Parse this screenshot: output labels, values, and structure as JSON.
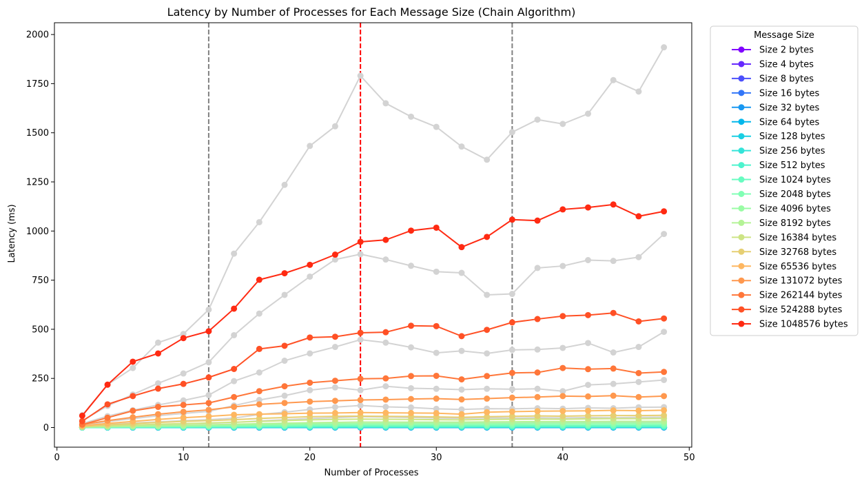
{
  "chart_data": {
    "type": "line",
    "title": "Latency by Number of Processes for Each Message Size (Chain Algorithm)",
    "xlabel": "Number of Processes",
    "ylabel": "Latency (ms)",
    "xlim": [
      -0.2,
      50.2
    ],
    "ylim": [
      -100,
      2060
    ],
    "xticks": [
      0,
      10,
      20,
      30,
      40,
      50
    ],
    "yticks": [
      0,
      250,
      500,
      750,
      1000,
      1250,
      1500,
      1750,
      2000
    ],
    "grid": false,
    "legend_title": "Message Size",
    "legend_position": "outside right, top",
    "vertical_lines": [
      {
        "x": 12,
        "color": "#808080",
        "style": "dashed"
      },
      {
        "x": 24,
        "color": "#ff0000",
        "style": "dashed"
      },
      {
        "x": 36,
        "color": "#808080",
        "style": "dashed"
      }
    ],
    "x": [
      2,
      4,
      6,
      8,
      10,
      12,
      14,
      16,
      18,
      20,
      22,
      24,
      26,
      28,
      30,
      32,
      34,
      36,
      38,
      40,
      42,
      44,
      46,
      48
    ],
    "gray_series_color": "#d3d3d3",
    "gray_series": [
      {
        "values": [
          63,
          218,
          303,
          432,
          476,
          600,
          885,
          1045,
          1235,
          1433,
          1533,
          1790,
          1650,
          1582,
          1530,
          1430,
          1363,
          1503,
          1567,
          1545,
          1597,
          1768,
          1710,
          1935
        ]
      },
      {
        "values": [
          35,
          110,
          168,
          225,
          275,
          332,
          470,
          580,
          675,
          768,
          855,
          882,
          855,
          823,
          793,
          787,
          675,
          680,
          812,
          822,
          852,
          848,
          867,
          985
        ]
      },
      {
        "values": [
          20,
          58,
          88,
          115,
          138,
          165,
          236,
          280,
          340,
          377,
          410,
          447,
          432,
          408,
          380,
          390,
          377,
          395,
          397,
          405,
          430,
          382,
          410,
          487
        ]
      },
      {
        "values": [
          12,
          30,
          45,
          60,
          72,
          82,
          112,
          140,
          162,
          190,
          204,
          190,
          210,
          200,
          197,
          193,
          197,
          195,
          197,
          185,
          217,
          222,
          232,
          242
        ]
      },
      {
        "values": [
          7,
          16,
          23,
          29,
          35,
          40,
          48,
          66,
          78,
          92,
          104,
          112,
          105,
          102,
          95,
          92,
          96,
          95,
          98,
          96,
          100,
          98,
          103,
          104
        ]
      },
      {
        "values": [
          4,
          9,
          13,
          16,
          19,
          22,
          26,
          34,
          40,
          46,
          50,
          55,
          53,
          51,
          48,
          47,
          49,
          48,
          50,
          49,
          51,
          50,
          52,
          53
        ]
      },
      {
        "values": [
          2,
          5,
          7,
          9,
          10,
          12,
          14,
          18,
          21,
          24,
          26,
          28,
          27,
          26,
          25,
          24,
          25,
          25,
          26,
          25,
          26,
          26,
          27,
          28
        ]
      }
    ],
    "series": [
      {
        "name": "Size 2 bytes",
        "color": "#8000ff",
        "values": [
          0.05,
          0.1,
          0.1,
          0.2,
          0.2,
          0.2,
          0.3,
          0.3,
          0.3,
          0.4,
          0.4,
          0.4,
          0.4,
          0.4,
          0.4,
          0.4,
          0.4,
          0.5,
          0.5,
          0.5,
          0.5,
          0.5,
          0.5,
          0.5
        ]
      },
      {
        "name": "Size 4 bytes",
        "color": "#6629fe",
        "values": [
          0.05,
          0.1,
          0.1,
          0.2,
          0.2,
          0.2,
          0.3,
          0.3,
          0.3,
          0.4,
          0.4,
          0.4,
          0.4,
          0.4,
          0.4,
          0.4,
          0.4,
          0.5,
          0.5,
          0.5,
          0.5,
          0.5,
          0.5,
          0.5
        ]
      },
      {
        "name": "Size 8 bytes",
        "color": "#4c50fc",
        "values": [
          0.05,
          0.1,
          0.1,
          0.2,
          0.2,
          0.2,
          0.3,
          0.3,
          0.3,
          0.4,
          0.4,
          0.4,
          0.4,
          0.4,
          0.4,
          0.4,
          0.4,
          0.5,
          0.5,
          0.5,
          0.5,
          0.5,
          0.5,
          0.5
        ]
      },
      {
        "name": "Size 16 bytes",
        "color": "#3276f8",
        "values": [
          0.05,
          0.1,
          0.1,
          0.2,
          0.2,
          0.2,
          0.3,
          0.3,
          0.3,
          0.4,
          0.4,
          0.4,
          0.4,
          0.4,
          0.4,
          0.4,
          0.4,
          0.5,
          0.5,
          0.5,
          0.5,
          0.5,
          0.5,
          0.5
        ]
      },
      {
        "name": "Size 32 bytes",
        "color": "#1898f2",
        "values": [
          0.1,
          0.1,
          0.2,
          0.2,
          0.2,
          0.3,
          0.3,
          0.4,
          0.4,
          0.4,
          0.5,
          0.5,
          0.5,
          0.5,
          0.5,
          0.5,
          0.5,
          0.6,
          0.6,
          0.6,
          0.6,
          0.6,
          0.6,
          0.6
        ]
      },
      {
        "name": "Size 64 bytes",
        "color": "#02b7eb",
        "values": [
          0.1,
          0.2,
          0.2,
          0.3,
          0.3,
          0.4,
          0.4,
          0.5,
          0.5,
          0.6,
          0.6,
          0.6,
          0.6,
          0.6,
          0.6,
          0.6,
          0.7,
          0.7,
          0.7,
          0.7,
          0.7,
          0.7,
          0.7,
          0.8
        ]
      },
      {
        "name": "Size 128 bytes",
        "color": "#1acfe3",
        "values": [
          0.2,
          0.3,
          0.4,
          0.5,
          0.5,
          0.6,
          0.7,
          0.8,
          0.9,
          1.0,
          1.0,
          1.1,
          1.1,
          1.1,
          1.1,
          1.1,
          1.2,
          1.2,
          1.2,
          1.2,
          1.2,
          1.3,
          1.3,
          1.3
        ]
      },
      {
        "name": "Size 256 bytes",
        "color": "#34e4d9",
        "values": [
          0.3,
          0.6,
          0.8,
          1.0,
          1.1,
          1.3,
          1.5,
          1.7,
          1.9,
          2.1,
          2.2,
          2.3,
          2.3,
          2.3,
          2.3,
          2.3,
          2.4,
          2.4,
          2.5,
          2.5,
          2.5,
          2.6,
          2.6,
          2.7
        ]
      },
      {
        "name": "Size 512 bytes",
        "color": "#4df3ce",
        "values": [
          0.5,
          1.0,
          1.4,
          1.8,
          2.1,
          2.4,
          2.8,
          3.2,
          3.6,
          4.0,
          4.2,
          4.4,
          4.4,
          4.4,
          4.4,
          4.4,
          4.6,
          4.7,
          4.8,
          4.8,
          4.9,
          5.0,
          5.0,
          5.1
        ]
      },
      {
        "name": "Size 1024 bytes",
        "color": "#68fcc1",
        "values": [
          0.8,
          1.7,
          2.4,
          3.1,
          3.6,
          4.2,
          4.9,
          5.6,
          6.3,
          7.0,
          7.4,
          7.8,
          7.8,
          7.8,
          7.8,
          7.8,
          8.1,
          8.3,
          8.5,
          8.5,
          8.7,
          8.9,
          8.9,
          9.1
        ]
      },
      {
        "name": "Size 2048 bytes",
        "color": "#80ffb4",
        "values": [
          1.2,
          2.6,
          3.8,
          4.9,
          5.8,
          6.8,
          8.0,
          9.2,
          10.4,
          11.6,
          12.3,
          13.0,
          13.0,
          13.0,
          13.0,
          13.0,
          13.5,
          13.8,
          14.1,
          14.1,
          14.4,
          14.8,
          14.8,
          15.1
        ]
      },
      {
        "name": "Size 4096 bytes",
        "color": "#9afca5",
        "values": [
          1.8,
          4.0,
          5.8,
          7.5,
          8.9,
          10.4,
          12.3,
          14.2,
          16.0,
          17.9,
          19.0,
          20.0,
          20.0,
          20.0,
          20.0,
          20.0,
          20.8,
          21.2,
          21.7,
          21.7,
          22.2,
          22.8,
          22.8,
          23.2
        ]
      },
      {
        "name": "Size 8192 bytes",
        "color": "#b4f396",
        "values": [
          2.5,
          5.5,
          8.0,
          10.3,
          12.3,
          14.4,
          17.0,
          19.6,
          22.1,
          24.7,
          26.2,
          27.6,
          27.6,
          27.6,
          27.6,
          27.6,
          28.7,
          29.3,
          30.0,
          30.0,
          30.6,
          31.4,
          31.4,
          32.0
        ]
      },
      {
        "name": "Size 16384 bytes",
        "color": "#cde485",
        "values": [
          4,
          9,
          13,
          17,
          20,
          23,
          27,
          31,
          35,
          39,
          41,
          43,
          42,
          41,
          40,
          39,
          41,
          42,
          43,
          42,
          44,
          45,
          45,
          46
        ]
      },
      {
        "name": "Size 32768 bytes",
        "color": "#e6cf73",
        "values": [
          6,
          14,
          20,
          26,
          31,
          35,
          40,
          46,
          51,
          55,
          57,
          58,
          57,
          56,
          54,
          52,
          55,
          57,
          59,
          58,
          60,
          61,
          61,
          62
        ]
      },
      {
        "name": "Size 65536 bytes",
        "color": "#feb761",
        "values": [
          9,
          21,
          31,
          41,
          50,
          57,
          65,
          68,
          70,
          73,
          74,
          76,
          75,
          74,
          73,
          68,
          78,
          81,
          83,
          84,
          85,
          87,
          86,
          88
        ]
      },
      {
        "name": "Size 131072 bytes",
        "color": "#ff984e",
        "values": [
          15,
          35,
          52,
          68,
          80,
          90,
          105,
          118,
          125,
          132,
          136,
          140,
          142,
          145,
          147,
          143,
          147,
          152,
          155,
          160,
          158,
          162,
          155,
          160
        ]
      },
      {
        "name": "Size 262144 bytes",
        "color": "#ff7639",
        "values": [
          15,
          50,
          85,
          105,
          115,
          125,
          155,
          185,
          210,
          228,
          238,
          248,
          250,
          262,
          263,
          245,
          262,
          278,
          280,
          303,
          297,
          300,
          277,
          283
        ]
      },
      {
        "name": "Size 524288 bytes",
        "color": "#ff5025",
        "values": [
          32,
          118,
          160,
          198,
          222,
          255,
          298,
          400,
          416,
          458,
          462,
          482,
          485,
          518,
          516,
          465,
          497,
          535,
          552,
          567,
          572,
          583,
          540,
          555
        ]
      },
      {
        "name": "Size 1048576 bytes",
        "color": "#ff2a12",
        "values": [
          60,
          218,
          335,
          377,
          455,
          490,
          605,
          752,
          785,
          828,
          880,
          945,
          955,
          1002,
          1017,
          918,
          970,
          1058,
          1053,
          1110,
          1120,
          1135,
          1075,
          1100
        ]
      }
    ]
  }
}
